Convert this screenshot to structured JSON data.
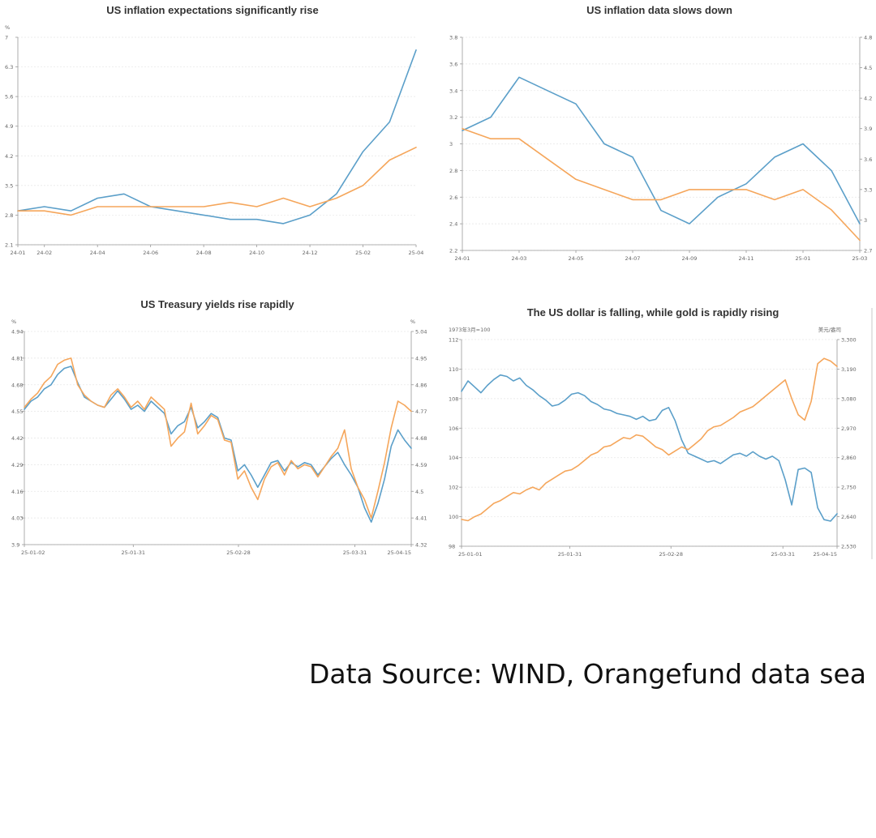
{
  "source_note": "Data Source: WIND, Orangefund data sea",
  "colors": {
    "blue": "#5b9fc9",
    "orange": "#f5a65b"
  },
  "chart_data": [
    {
      "type": "line",
      "title": "US inflation expectations significantly rise",
      "unit_left": "%",
      "x": [
        "24-01",
        "24-02",
        "24-03",
        "24-04",
        "24-05",
        "24-06",
        "24-07",
        "24-08",
        "24-09",
        "24-10",
        "24-11",
        "24-12",
        "25-01",
        "25-02",
        "25-03",
        "25-04"
      ],
      "x_tick_labels": [
        "24-01",
        "24-02",
        "24-04",
        "24-06",
        "24-08",
        "24-10",
        "24-12",
        "25-02",
        "25-04"
      ],
      "ylim": [
        2.1,
        7
      ],
      "y_ticks": [
        "2.1",
        "2.8",
        "3.5",
        "4.2",
        "4.9",
        "5.6",
        "6.3",
        "7"
      ],
      "series": [
        {
          "color": "blue",
          "values": [
            2.9,
            3.0,
            2.9,
            3.2,
            3.3,
            3.0,
            2.9,
            2.8,
            2.7,
            2.7,
            2.6,
            2.8,
            3.3,
            4.3,
            5.0,
            6.7
          ]
        },
        {
          "color": "orange",
          "values": [
            2.9,
            2.9,
            2.8,
            3.0,
            3.0,
            3.0,
            3.0,
            3.0,
            3.1,
            3.0,
            3.2,
            3.0,
            3.2,
            3.5,
            4.1,
            4.4
          ]
        }
      ]
    },
    {
      "type": "line",
      "title": "US inflation data slows down",
      "x": [
        "24-01",
        "24-02",
        "24-03",
        "24-04",
        "24-05",
        "24-06",
        "24-07",
        "24-08",
        "24-09",
        "24-10",
        "24-11",
        "24-12",
        "25-01",
        "25-02",
        "25-03"
      ],
      "x_tick_labels": [
        "24-01",
        "24-03",
        "24-05",
        "24-07",
        "24-09",
        "24-11",
        "25-01",
        "25-03"
      ],
      "ylim_left": [
        2.2,
        3.8
      ],
      "y_ticks_left": [
        "2.2",
        "2.4",
        "2.6",
        "2.8",
        "3",
        "3.2",
        "3.4",
        "3.6",
        "3.8"
      ],
      "ylim_right": [
        2.7,
        4.8
      ],
      "y_ticks_right": [
        "2.7",
        "3",
        "3.3",
        "3.6",
        "3.9",
        "4.2",
        "4.5",
        "4.8"
      ],
      "series": [
        {
          "color": "blue",
          "axis": "left",
          "values": [
            3.1,
            3.2,
            3.5,
            3.4,
            3.3,
            3.0,
            2.9,
            2.5,
            2.4,
            2.6,
            2.7,
            2.9,
            3.0,
            2.8,
            2.4
          ]
        },
        {
          "color": "orange",
          "axis": "right",
          "values": [
            3.9,
            3.8,
            3.8,
            3.6,
            3.4,
            3.3,
            3.2,
            3.2,
            3.3,
            3.3,
            3.3,
            3.2,
            3.3,
            3.1,
            2.8
          ]
        }
      ]
    },
    {
      "type": "line",
      "title": "US Treasury yields rise rapidly",
      "unit_left": "%",
      "unit_right": "%",
      "x_start": "25-01-02",
      "x_end": "25-04-15",
      "x_tick_labels": [
        "25-01-02",
        "25-01-31",
        "25-02-28",
        "25-03-31",
        "25-04-15"
      ],
      "ylim_left": [
        3.9,
        4.94
      ],
      "y_ticks_left": [
        "3.9",
        "4.03",
        "4.16",
        "4.29",
        "4.42",
        "4.55",
        "4.68",
        "4.81",
        "4.94"
      ],
      "ylim_right": [
        4.32,
        5.04
      ],
      "y_ticks_right": [
        "4.32",
        "4.41",
        "4.5",
        "4.59",
        "4.68",
        "4.77",
        "4.86",
        "4.95",
        "5.04"
      ],
      "series": [
        {
          "color": "blue",
          "axis": "left",
          "values": [
            4.56,
            4.6,
            4.62,
            4.66,
            4.68,
            4.73,
            4.76,
            4.77,
            4.69,
            4.62,
            4.6,
            4.58,
            4.57,
            4.61,
            4.65,
            4.61,
            4.56,
            4.58,
            4.55,
            4.6,
            4.57,
            4.54,
            4.44,
            4.48,
            4.5,
            4.57,
            4.47,
            4.5,
            4.54,
            4.52,
            4.42,
            4.41,
            4.26,
            4.29,
            4.24,
            4.18,
            4.24,
            4.3,
            4.31,
            4.26,
            4.3,
            4.28,
            4.3,
            4.29,
            4.24,
            4.28,
            4.32,
            4.35,
            4.29,
            4.24,
            4.18,
            4.08,
            4.01,
            4.1,
            4.22,
            4.38,
            4.46,
            4.41,
            4.37
          ]
        },
        {
          "color": "orange",
          "axis": "left",
          "values": [
            4.57,
            4.61,
            4.64,
            4.69,
            4.72,
            4.78,
            4.8,
            4.81,
            4.68,
            4.63,
            4.6,
            4.58,
            4.57,
            4.63,
            4.66,
            4.62,
            4.57,
            4.6,
            4.56,
            4.62,
            4.59,
            4.56,
            4.38,
            4.42,
            4.45,
            4.59,
            4.44,
            4.48,
            4.53,
            4.51,
            4.41,
            4.4,
            4.22,
            4.26,
            4.18,
            4.12,
            4.22,
            4.28,
            4.3,
            4.24,
            4.31,
            4.27,
            4.29,
            4.28,
            4.23,
            4.28,
            4.33,
            4.37,
            4.46,
            4.27,
            4.18,
            4.12,
            4.03,
            4.16,
            4.3,
            4.47,
            4.6,
            4.58,
            4.55
          ]
        }
      ]
    },
    {
      "type": "line",
      "title": "The US dollar is falling, while gold is rapidly rising",
      "unit_left": "1973年3月=100",
      "unit_right": "美元/盎司",
      "x_start": "25-01-01",
      "x_end": "25-04-15",
      "x_tick_labels": [
        "25-01-01",
        "25-01-31",
        "25-02-28",
        "25-03-31",
        "25-04-15"
      ],
      "ylim_left": [
        98,
        112
      ],
      "y_ticks_left": [
        "98",
        "100",
        "102",
        "104",
        "106",
        "108",
        "110",
        "112"
      ],
      "ylim_right": [
        2530,
        3300
      ],
      "y_ticks_right": [
        "2,530",
        "2,640",
        "2,750",
        "2,860",
        "2,970",
        "3,080",
        "3,190",
        "3,300"
      ],
      "series": [
        {
          "color": "blue",
          "axis": "left",
          "values": [
            108.5,
            109.2,
            108.8,
            108.4,
            108.9,
            109.3,
            109.6,
            109.5,
            109.2,
            109.4,
            108.9,
            108.6,
            108.2,
            107.9,
            107.5,
            107.6,
            107.9,
            108.3,
            108.4,
            108.2,
            107.8,
            107.6,
            107.3,
            107.2,
            107.0,
            106.9,
            106.8,
            106.6,
            106.8,
            106.5,
            106.6,
            107.2,
            107.4,
            106.5,
            105.2,
            104.3,
            104.1,
            103.9,
            103.7,
            103.8,
            103.6,
            103.9,
            104.2,
            104.3,
            104.1,
            104.4,
            104.1,
            103.9,
            104.1,
            103.8,
            102.5,
            100.8,
            103.2,
            103.3,
            103.0,
            100.6,
            99.8,
            99.7,
            100.2
          ]
        },
        {
          "color": "orange",
          "axis": "right",
          "values": [
            2630,
            2625,
            2640,
            2650,
            2670,
            2690,
            2700,
            2715,
            2730,
            2725,
            2740,
            2750,
            2740,
            2765,
            2780,
            2795,
            2810,
            2815,
            2830,
            2850,
            2870,
            2880,
            2900,
            2905,
            2920,
            2935,
            2930,
            2945,
            2940,
            2920,
            2900,
            2890,
            2870,
            2885,
            2900,
            2890,
            2910,
            2930,
            2960,
            2975,
            2980,
            2995,
            3010,
            3030,
            3040,
            3050,
            3070,
            3090,
            3110,
            3130,
            3150,
            3080,
            3020,
            3000,
            3070,
            3210,
            3230,
            3220,
            3200
          ]
        }
      ]
    }
  ]
}
